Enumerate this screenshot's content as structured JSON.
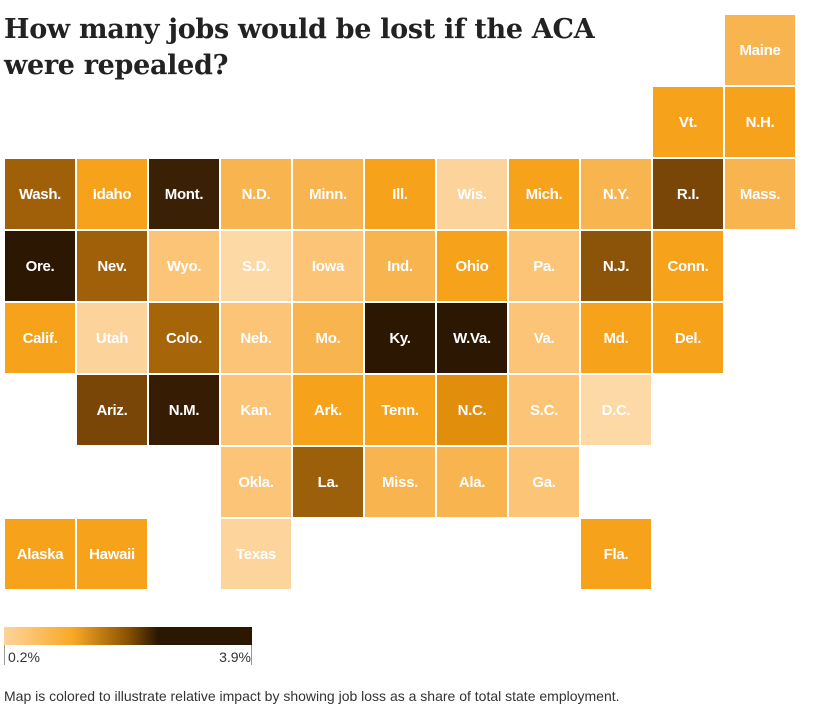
{
  "title": "How many jobs would be lost if the ACA were repealed?",
  "legend": {
    "min_label": "0.2%",
    "max_label": "3.9%",
    "stops": [
      "#fdd49b",
      "#f9a825",
      "#8a5200",
      "#2b1700"
    ]
  },
  "note": "Map is colored to illustrate relative impact by showing job loss as a share of total state employment.",
  "chart_data": {
    "type": "heatmap",
    "tiles": [
      {
        "label": "Maine",
        "row": 0,
        "col": 10,
        "color": "#f8b44e"
      },
      {
        "label": "Vt.",
        "row": 1,
        "col": 9,
        "color": "#f6a21b"
      },
      {
        "label": "N.H.",
        "row": 1,
        "col": 10,
        "color": "#f6a21b"
      },
      {
        "label": "Wash.",
        "row": 2,
        "col": 0,
        "color": "#a0600a"
      },
      {
        "label": "Idaho",
        "row": 2,
        "col": 1,
        "color": "#f6a21b"
      },
      {
        "label": "Mont.",
        "row": 2,
        "col": 2,
        "color": "#3a2004"
      },
      {
        "label": "N.D.",
        "row": 2,
        "col": 3,
        "color": "#f8b44e"
      },
      {
        "label": "Minn.",
        "row": 2,
        "col": 4,
        "color": "#f8b44e"
      },
      {
        "label": "Ill.",
        "row": 2,
        "col": 5,
        "color": "#f6a21b"
      },
      {
        "label": "Wis.",
        "row": 2,
        "col": 6,
        "color": "#fcd39a"
      },
      {
        "label": "Mich.",
        "row": 2,
        "col": 7,
        "color": "#f6a21b"
      },
      {
        "label": "N.Y.",
        "row": 2,
        "col": 8,
        "color": "#f8b44e"
      },
      {
        "label": "R.I.",
        "row": 2,
        "col": 9,
        "color": "#7a4607"
      },
      {
        "label": "Mass.",
        "row": 2,
        "col": 10,
        "color": "#f8b44e"
      },
      {
        "label": "Ore.",
        "row": 3,
        "col": 0,
        "color": "#2b1702"
      },
      {
        "label": "Nev.",
        "row": 3,
        "col": 1,
        "color": "#a0600a"
      },
      {
        "label": "Wyo.",
        "row": 3,
        "col": 2,
        "color": "#fbc476"
      },
      {
        "label": "S.D.",
        "row": 3,
        "col": 3,
        "color": "#fdd9a6"
      },
      {
        "label": "Iowa",
        "row": 3,
        "col": 4,
        "color": "#fbc476"
      },
      {
        "label": "Ind.",
        "row": 3,
        "col": 5,
        "color": "#f8b44e"
      },
      {
        "label": "Ohio",
        "row": 3,
        "col": 6,
        "color": "#f6a21b"
      },
      {
        "label": "Pa.",
        "row": 3,
        "col": 7,
        "color": "#fbc476"
      },
      {
        "label": "N.J.",
        "row": 3,
        "col": 8,
        "color": "#8c5409"
      },
      {
        "label": "Conn.",
        "row": 3,
        "col": 9,
        "color": "#f6a21b"
      },
      {
        "label": "Calif.",
        "row": 4,
        "col": 0,
        "color": "#f6a21b"
      },
      {
        "label": "Utah",
        "row": 4,
        "col": 1,
        "color": "#fcd39a"
      },
      {
        "label": "Colo.",
        "row": 4,
        "col": 2,
        "color": "#a66509"
      },
      {
        "label": "Neb.",
        "row": 4,
        "col": 3,
        "color": "#fbc476"
      },
      {
        "label": "Mo.",
        "row": 4,
        "col": 4,
        "color": "#f8b44e"
      },
      {
        "label": "Ky.",
        "row": 4,
        "col": 5,
        "color": "#2b1702"
      },
      {
        "label": "W.Va.",
        "row": 4,
        "col": 6,
        "color": "#2b1702"
      },
      {
        "label": "Va.",
        "row": 4,
        "col": 7,
        "color": "#fbc476"
      },
      {
        "label": "Md.",
        "row": 4,
        "col": 8,
        "color": "#f6a21b"
      },
      {
        "label": "Del.",
        "row": 4,
        "col": 9,
        "color": "#f6a21b"
      },
      {
        "label": "Ariz.",
        "row": 5,
        "col": 1,
        "color": "#7a4607"
      },
      {
        "label": "N.M.",
        "row": 5,
        "col": 2,
        "color": "#351c03"
      },
      {
        "label": "Kan.",
        "row": 5,
        "col": 3,
        "color": "#fbc476"
      },
      {
        "label": "Ark.",
        "row": 5,
        "col": 4,
        "color": "#f6a21b"
      },
      {
        "label": "Tenn.",
        "row": 5,
        "col": 5,
        "color": "#f6a21b"
      },
      {
        "label": "N.C.",
        "row": 5,
        "col": 6,
        "color": "#e08e0b"
      },
      {
        "label": "S.C.",
        "row": 5,
        "col": 7,
        "color": "#fbc476"
      },
      {
        "label": "D.C.",
        "row": 5,
        "col": 8,
        "color": "#fdd9a6"
      },
      {
        "label": "Okla.",
        "row": 6,
        "col": 3,
        "color": "#fbc476"
      },
      {
        "label": "La.",
        "row": 6,
        "col": 4,
        "color": "#9c5f0a"
      },
      {
        "label": "Miss.",
        "row": 6,
        "col": 5,
        "color": "#f8b44e"
      },
      {
        "label": "Ala.",
        "row": 6,
        "col": 6,
        "color": "#f8b44e"
      },
      {
        "label": "Ga.",
        "row": 6,
        "col": 7,
        "color": "#fbc476"
      },
      {
        "label": "Alaska",
        "row": 7,
        "col": 0,
        "color": "#f6a21b"
      },
      {
        "label": "Hawaii",
        "row": 7,
        "col": 1,
        "color": "#f6a21b"
      },
      {
        "label": "Texas",
        "row": 7,
        "col": 3,
        "color": "#fdd49b"
      },
      {
        "label": "Fla.",
        "row": 7,
        "col": 8,
        "color": "#f6a21b"
      }
    ]
  }
}
